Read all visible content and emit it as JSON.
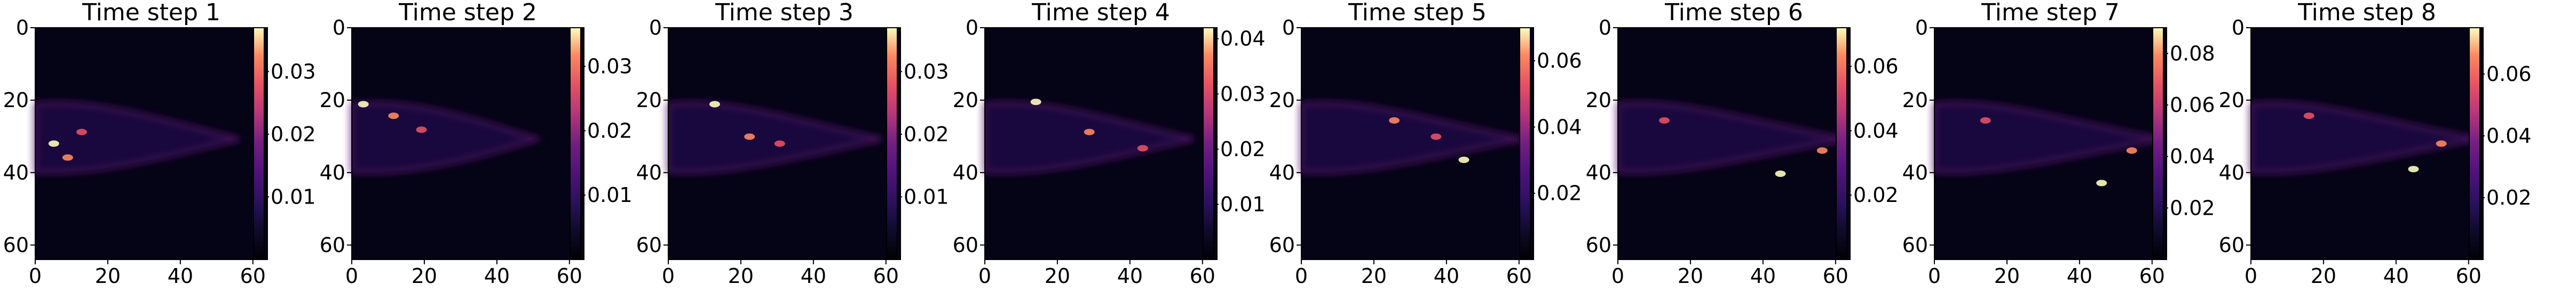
{
  "chart_data": [
    {
      "type": "heatmap",
      "title": "Time step 1",
      "xticks": [
        "0",
        "20",
        "40",
        "60"
      ],
      "yticks": [
        "0",
        "20",
        "40",
        "60"
      ],
      "xlim": [
        0,
        64
      ],
      "ylim": [
        64,
        0
      ],
      "colormap": "magma",
      "colorbar": {
        "ticks": [
          {
            "value": 0.01,
            "label": "0.01"
          },
          {
            "value": 0.02,
            "label": "0.02"
          },
          {
            "value": 0.03,
            "label": "0.03"
          }
        ],
        "min": 0.0,
        "max": 0.037
      }
    },
    {
      "type": "heatmap",
      "title": "Time step 2",
      "xticks": [
        "0",
        "20",
        "40",
        "60"
      ],
      "yticks": [
        "0",
        "20",
        "40",
        "60"
      ],
      "xlim": [
        0,
        64
      ],
      "ylim": [
        64,
        0
      ],
      "colormap": "magma",
      "colorbar": {
        "ticks": [
          {
            "value": 0.01,
            "label": "0.01"
          },
          {
            "value": 0.02,
            "label": "0.02"
          },
          {
            "value": 0.03,
            "label": "0.03"
          }
        ],
        "min": 0.0,
        "max": 0.036
      }
    },
    {
      "type": "heatmap",
      "title": "Time step 3",
      "xticks": [
        "0",
        "20",
        "40",
        "60"
      ],
      "yticks": [
        "0",
        "20",
        "40",
        "60"
      ],
      "xlim": [
        0,
        64
      ],
      "ylim": [
        64,
        0
      ],
      "colormap": "magma",
      "colorbar": {
        "ticks": [
          {
            "value": 0.01,
            "label": "0.01"
          },
          {
            "value": 0.02,
            "label": "0.02"
          },
          {
            "value": 0.03,
            "label": "0.03"
          }
        ],
        "min": 0.0,
        "max": 0.037
      }
    },
    {
      "type": "heatmap",
      "title": "Time step 4",
      "xticks": [
        "0",
        "20",
        "40",
        "60"
      ],
      "yticks": [
        "0",
        "20",
        "40",
        "60"
      ],
      "xlim": [
        0,
        64
      ],
      "ylim": [
        64,
        0
      ],
      "colormap": "magma",
      "colorbar": {
        "ticks": [
          {
            "value": 0.01,
            "label": "0.01"
          },
          {
            "value": 0.02,
            "label": "0.02"
          },
          {
            "value": 0.03,
            "label": "0.03"
          },
          {
            "value": 0.04,
            "label": "0.04"
          }
        ],
        "min": 0.0,
        "max": 0.042
      }
    },
    {
      "type": "heatmap",
      "title": "Time step 5",
      "xticks": [
        "0",
        "20",
        "40",
        "60"
      ],
      "yticks": [
        "0",
        "20",
        "40",
        "60"
      ],
      "xlim": [
        0,
        64
      ],
      "ylim": [
        64,
        0
      ],
      "colormap": "magma",
      "colorbar": {
        "ticks": [
          {
            "value": 0.02,
            "label": "0.02"
          },
          {
            "value": 0.04,
            "label": "0.04"
          },
          {
            "value": 0.06,
            "label": "0.06"
          }
        ],
        "min": 0.0,
        "max": 0.07
      }
    },
    {
      "type": "heatmap",
      "title": "Time step 6",
      "xticks": [
        "0",
        "20",
        "40",
        "60"
      ],
      "yticks": [
        "0",
        "20",
        "40",
        "60"
      ],
      "xlim": [
        0,
        64
      ],
      "ylim": [
        64,
        0
      ],
      "colormap": "magma",
      "colorbar": {
        "ticks": [
          {
            "value": 0.02,
            "label": "0.02"
          },
          {
            "value": 0.04,
            "label": "0.04"
          },
          {
            "value": 0.06,
            "label": "0.06"
          }
        ],
        "min": 0.0,
        "max": 0.072
      }
    },
    {
      "type": "heatmap",
      "title": "Time step 7",
      "xticks": [
        "0",
        "20",
        "40",
        "60"
      ],
      "yticks": [
        "0",
        "20",
        "40",
        "60"
      ],
      "xlim": [
        0,
        64
      ],
      "ylim": [
        64,
        0
      ],
      "colormap": "magma",
      "colorbar": {
        "ticks": [
          {
            "value": 0.02,
            "label": "0.02"
          },
          {
            "value": 0.04,
            "label": "0.04"
          },
          {
            "value": 0.06,
            "label": "0.06"
          },
          {
            "value": 0.08,
            "label": "0.08"
          }
        ],
        "min": 0.0,
        "max": 0.09
      }
    },
    {
      "type": "heatmap",
      "title": "Time step 8",
      "xticks": [
        "0",
        "20",
        "40",
        "60"
      ],
      "yticks": [
        "0",
        "20",
        "40",
        "60"
      ],
      "xlim": [
        0,
        64
      ],
      "ylim": [
        64,
        0
      ],
      "colormap": "magma",
      "colorbar": {
        "ticks": [
          {
            "value": 0.02,
            "label": "0.02"
          },
          {
            "value": 0.04,
            "label": "0.04"
          },
          {
            "value": 0.06,
            "label": "0.06"
          }
        ],
        "min": 0.0,
        "max": 0.075
      }
    }
  ]
}
